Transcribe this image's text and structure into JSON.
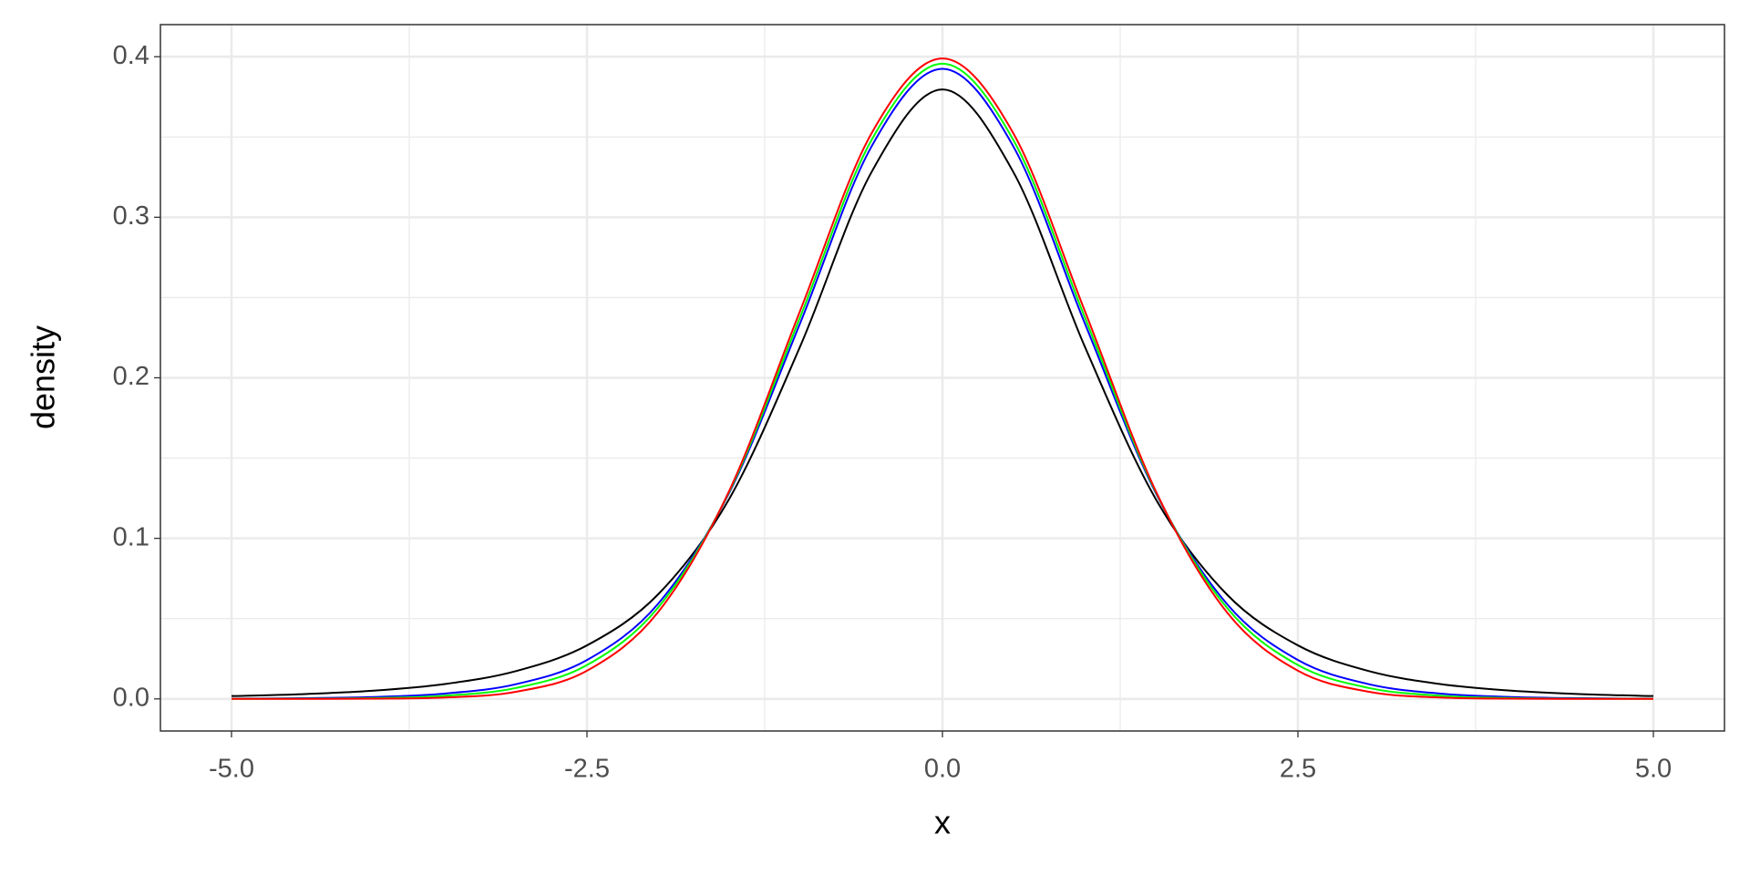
{
  "chart_data": {
    "type": "line",
    "x_label": "x",
    "y_label": "density",
    "x": [
      -5,
      -4.5,
      -4,
      -3.5,
      -3,
      -2.5,
      -2,
      -1.5,
      -1,
      -0.5,
      0,
      0.5,
      1,
      1.5,
      2,
      2.5,
      3,
      3.5,
      4,
      4.5,
      5
    ],
    "series": [
      {
        "color": "#000000",
        "values": [
          0.00176,
          0.00295,
          0.00512,
          0.00925,
          0.01729,
          0.03333,
          0.06509,
          0.12452,
          0.21968,
          0.32792,
          0.37961,
          0.32792,
          0.21968,
          0.12452,
          0.06509,
          0.03333,
          0.01729,
          0.00925,
          0.00512,
          0.00295,
          0.00176
        ]
      },
      {
        "color": "#0000ff",
        "values": [
          0.00015,
          0.00042,
          0.00118,
          0.00331,
          0.00914,
          0.0242,
          0.05922,
          0.12831,
          0.23422,
          0.34389,
          0.3925,
          0.34389,
          0.23422,
          0.12831,
          0.05922,
          0.0242,
          0.00914,
          0.00331,
          0.00118,
          0.00042,
          0.00015
        ]
      },
      {
        "color": "#00ff00",
        "values": [
          3e-05,
          0.00013,
          0.00052,
          0.00196,
          0.00678,
          0.02106,
          0.05685,
          0.12896,
          0.238,
          0.34788,
          0.39563,
          0.34788,
          0.238,
          0.12896,
          0.05685,
          0.02106,
          0.00678,
          0.00196,
          0.00052,
          0.00013,
          3e-05
        ]
      },
      {
        "color": "#ff0000",
        "values": [
          0,
          2e-05,
          0.00013,
          0.00087,
          0.00443,
          0.01753,
          0.05399,
          0.12952,
          0.24197,
          0.35207,
          0.39894,
          0.35207,
          0.24197,
          0.12952,
          0.05399,
          0.01753,
          0.00443,
          0.00087,
          0.00013,
          2e-05,
          0
        ]
      }
    ],
    "xlim": [
      -5.5,
      5.5
    ],
    "xticks": [
      {
        "value": -5,
        "label": "-5.0"
      },
      {
        "value": -2.5,
        "label": "-2.5"
      },
      {
        "value": 0,
        "label": "0.0"
      },
      {
        "value": 2.5,
        "label": "2.5"
      },
      {
        "value": 5,
        "label": "5.0"
      }
    ],
    "ylim": [
      -0.02,
      0.42
    ],
    "yticks": [
      {
        "value": 0,
        "label": "0.0"
      },
      0.1,
      0.2,
      0.3,
      0.4
    ],
    "grid": true,
    "minor_grid": true
  }
}
